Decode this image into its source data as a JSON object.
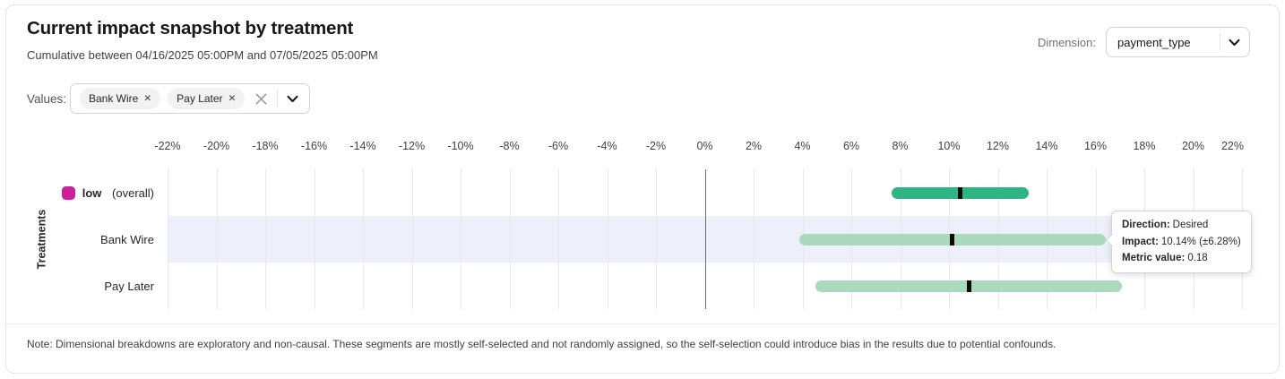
{
  "header": {
    "title": "Current impact snapshot by treatment",
    "subtitle": "Cumulative between 04/16/2025 05:00PM and 07/05/2025 05:00PM",
    "dimension_label": "Dimension:",
    "dimension_value": "payment_type"
  },
  "filters": {
    "values_label": "Values:",
    "chips": [
      {
        "label": "Bank Wire",
        "remove_icon": "x"
      },
      {
        "label": "Pay Later",
        "remove_icon": "x"
      }
    ],
    "clear_icon": "x",
    "dropdown_icon": "chevron-down"
  },
  "chart_data": {
    "type": "bar",
    "orientation": "horizontal",
    "title": "Current impact snapshot by treatment",
    "ylabel": "Treatments",
    "x_unit": "%",
    "xlim": [
      -22,
      22
    ],
    "x_tick_step": 2,
    "grid": true,
    "zero_line": true,
    "series": [
      {
        "label": "low",
        "label_suffix": "(overall)",
        "legend_color": "#cb1f9c",
        "impact_pct": 10.46,
        "margin_pct": 2.81,
        "bar_color": "#2eb583",
        "highlighted": false
      },
      {
        "label": "Bank Wire",
        "impact_pct": 10.14,
        "margin_pct": 6.28,
        "bar_color": "#aad9bc",
        "highlighted": true
      },
      {
        "label": "Pay Later",
        "impact_pct": 10.81,
        "margin_pct": 6.28,
        "bar_color": "#aad9bc",
        "highlighted": false
      }
    ]
  },
  "tooltip": {
    "direction_label": "Direction:",
    "direction_value": "Desired",
    "impact_label": "Impact:",
    "impact_value": "10.14% (±6.28%)",
    "metric_label": "Metric value:",
    "metric_value": "0.18"
  },
  "footnote": "Note: Dimensional breakdowns are exploratory and non-causal. These segments are mostly self-selected and not randomly assigned, so the self-selection could introduce bias in the results due to potential confounds."
}
